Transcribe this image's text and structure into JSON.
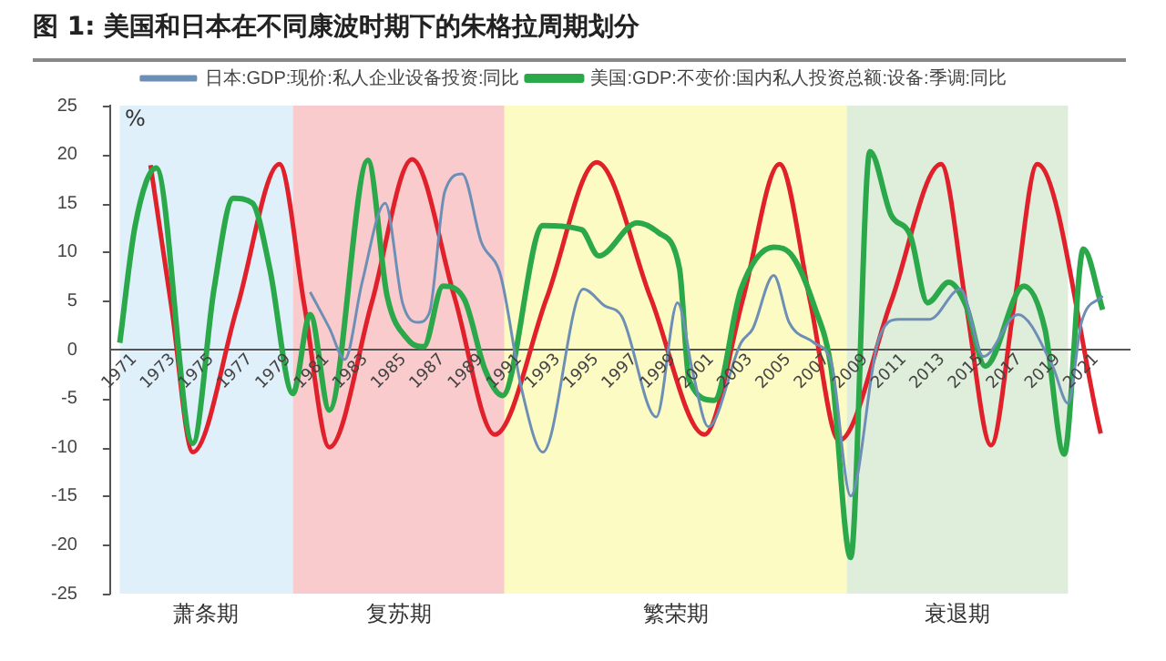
{
  "chart_data": {
    "type": "line",
    "title": "图 1:  美国和日本在不同康波时期下的朱格拉周期划分",
    "ylabel": "%",
    "xlim": [
      1970.5,
      2023.5
    ],
    "xticks": [
      1971,
      1973,
      1975,
      1977,
      1979,
      1981,
      1983,
      1985,
      1987,
      1989,
      1991,
      1993,
      1995,
      1997,
      1999,
      2001,
      2003,
      2005,
      2007,
      2009,
      2011,
      2013,
      2015,
      2017,
      2019,
      2021
    ],
    "ylim": [
      -25,
      25
    ],
    "yticks": [
      -25,
      -20,
      -15,
      -10,
      -5,
      0,
      5,
      10,
      15,
      20,
      25
    ],
    "grid": false,
    "legend": "top",
    "marker": "none",
    "line_style": "solid",
    "bands": [
      {
        "axis": "x",
        "from": 1971,
        "to": 1980,
        "label": "萧条期",
        "color": "#dff0fa"
      },
      {
        "axis": "x",
        "from": 1980,
        "to": 1991,
        "label": "复苏期",
        "color": "#f9cbcd"
      },
      {
        "axis": "x",
        "from": 1991,
        "to": 2008.8,
        "label": "繁荣期",
        "color": "#fdfbc4"
      },
      {
        "axis": "x",
        "from": 2008.8,
        "to": 2020.3,
        "label": "衰退期",
        "color": "#dfeddb"
      }
    ],
    "series": [
      {
        "name": "日本:GDP:现价:私人企业设备投资:同比",
        "color": "#6d8fb5",
        "x": [
          1980.9,
          1981.9,
          1982.7,
          1983.6,
          1984.8,
          1985.7,
          1986.5,
          1987.1,
          1987.9,
          1988.8,
          1989.8,
          1990.8,
          1991.9,
          1993.0,
          1995.1,
          1996.2,
          1997.1,
          1998.9,
          2000.0,
          2000.8,
          2001.6,
          2003.3,
          2003.9,
          2005.0,
          2005.8,
          2007.1,
          2008.0,
          2009.0,
          2010.4,
          2011.5,
          2013.1,
          2014.7,
          2015.9,
          2017.7,
          2019.5,
          2020.3,
          2021.0,
          2022.1
        ],
        "values": [
          5.9,
          2.2,
          -1.0,
          6.9,
          15.0,
          4.8,
          2.8,
          3.8,
          16.2,
          18.0,
          11.0,
          7.6,
          -4.1,
          -10.5,
          6.2,
          4.5,
          3.4,
          -6.9,
          4.8,
          -2.4,
          -7.9,
          0.7,
          2.1,
          7.6,
          2.8,
          0.7,
          -1.4,
          -15.0,
          0.7,
          3.1,
          3.1,
          6.2,
          -0.7,
          3.6,
          -1.7,
          -5.5,
          2.8,
          5.5
        ]
      },
      {
        "name": "美国:GDP:不变价:国内私人投资总额:设备:季调:同比",
        "color": "#2aa84a",
        "x": [
          1971.0,
          1971.8,
          1972.9,
          1974.8,
          1975.9,
          1976.9,
          1977.9,
          1978.8,
          1980.0,
          1980.9,
          1981.9,
          1983.9,
          1984.9,
          1986.0,
          1986.8,
          1987.8,
          1988.9,
          1990.0,
          1990.9,
          1993.0,
          1995.0,
          1995.9,
          1997.9,
          1999.0,
          2000.1,
          2000.6,
          2001.9,
          2003.3,
          2005.0,
          2006.0,
          2007.1,
          2008.0,
          2009.0,
          2010.0,
          2011.1,
          2012.1,
          2013.0,
          2014.1,
          2015.0,
          2016.0,
          2018.0,
          2019.1,
          2020.1,
          2021.1,
          2022.1
        ],
        "values": [
          0.7,
          12.7,
          18.6,
          -9.6,
          6.2,
          15.5,
          15.0,
          8.3,
          -4.5,
          3.6,
          -6.2,
          19.4,
          5.5,
          1.0,
          0.3,
          6.5,
          5.2,
          -2.1,
          -4.7,
          12.7,
          12.3,
          9.6,
          13.0,
          12.0,
          8.3,
          -3.1,
          -5.2,
          6.2,
          10.5,
          9.5,
          4.5,
          -2.1,
          -21.3,
          20.3,
          13.8,
          11.7,
          4.8,
          6.9,
          4.5,
          -1.7,
          6.5,
          2.1,
          -10.7,
          10.3,
          4.1
        ]
      },
      {
        "color": "#e0202a",
        "x": [
          1972.6,
          1973.7,
          1974.8,
          1977.1,
          1979.3,
          1980.6,
          1981.9,
          1984.1,
          1986.2,
          1988.4,
          1990.5,
          1993.2,
          1995.8,
          1998.6,
          2001.4,
          2003.4,
          2005.3,
          2006.9,
          2008.4,
          2011.1,
          2013.7,
          2015.0,
          2016.3,
          2017.5,
          2018.7,
          2022.0
        ],
        "values": [
          18.9,
          4.2,
          -10.5,
          4.3,
          19.0,
          4.5,
          -10.0,
          4.8,
          19.5,
          5.4,
          -8.7,
          5.3,
          19.2,
          5.3,
          -8.7,
          5.2,
          19.0,
          4.9,
          -9.3,
          4.9,
          19.0,
          4.6,
          -9.8,
          4.6,
          19.0,
          -8.6
        ]
      }
    ]
  }
}
